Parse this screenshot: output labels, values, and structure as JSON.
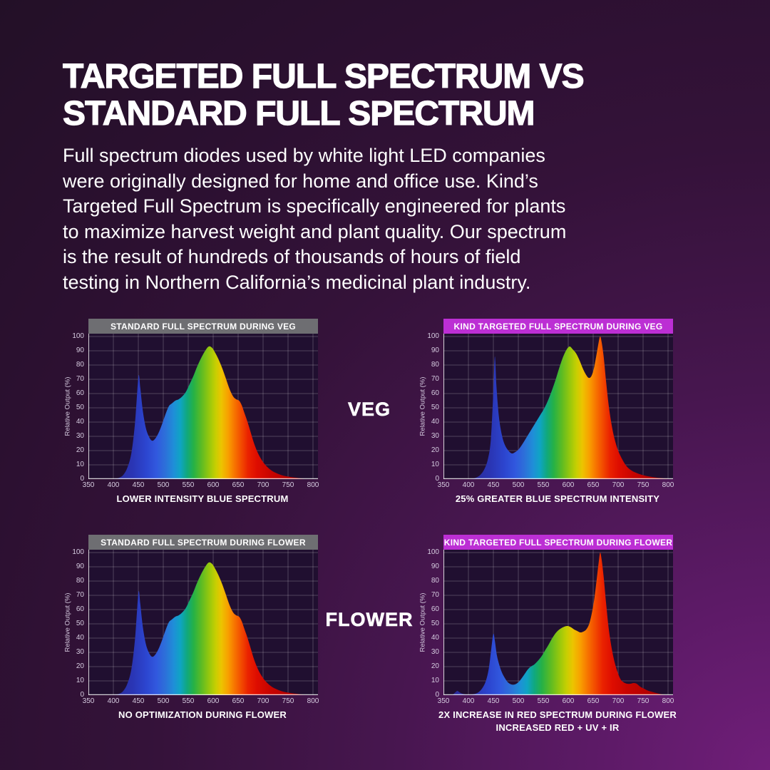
{
  "page": {
    "title_line1": "TARGETED FULL SPECTRUM VS",
    "title_line2": "STANDARD FULL SPECTRUM",
    "intro_lines": [
      "Full spectrum diodes used by white light LED companies",
      "were originally designed for home and office use. Kind’s",
      "Targeted Full Spectrum is specifically engineered for plants",
      "to maximize harvest weight and plant quality. Our spectrum",
      "is the result of hundreds of thousands of hours of field",
      "testing in Northern California’s medicinal plant industry."
    ]
  },
  "row_labels": {
    "veg": "VEG",
    "flower": "FLOWER"
  },
  "colors": {
    "background_dark": "#221026",
    "background_bright": "#701e79",
    "banner_standard": "#6e6e72",
    "banner_kind": "#bc2fd4",
    "plot_bg": "#200f30",
    "grid": "rgba(255,255,255,0.22)",
    "axis": "rgba(255,255,255,0.8)",
    "tick_text": "#d6cce0",
    "spectrum_stops": [
      [
        0.0,
        "#2b2b9a"
      ],
      [
        0.1,
        "#2a35b4"
      ],
      [
        0.17,
        "#2c45cf"
      ],
      [
        0.225,
        "#3158de"
      ],
      [
        0.27,
        "#2d6fd9"
      ],
      [
        0.315,
        "#1f8ed8"
      ],
      [
        0.35,
        "#0fa4c4"
      ],
      [
        0.385,
        "#10a87e"
      ],
      [
        0.42,
        "#26b146"
      ],
      [
        0.46,
        "#5bbb24"
      ],
      [
        0.5,
        "#94c70e"
      ],
      [
        0.535,
        "#c6cf02"
      ],
      [
        0.565,
        "#ecc400"
      ],
      [
        0.6,
        "#f8a000"
      ],
      [
        0.635,
        "#f77300"
      ],
      [
        0.67,
        "#f24a00"
      ],
      [
        0.705,
        "#ea2200"
      ],
      [
        0.75,
        "#de0d00"
      ],
      [
        0.82,
        "#c80400"
      ],
      [
        1.0,
        "#a50000"
      ]
    ]
  },
  "chart_data": [
    {
      "type": "area",
      "title": "STANDARD FULL SPECTRUM DURING VEG",
      "banner_style": "standard",
      "caption": [
        "LOWER INTENSITY BLUE SPECTRUM"
      ],
      "ylabel": "Relative Output (%)",
      "xlim": [
        350,
        810
      ],
      "ylim": [
        0,
        100
      ],
      "x_ticks": [
        350,
        400,
        450,
        500,
        550,
        600,
        650,
        700,
        750,
        800
      ],
      "y_ticks": [
        0,
        10,
        20,
        30,
        40,
        50,
        60,
        70,
        80,
        90,
        100
      ],
      "points": [
        [
          400,
          0
        ],
        [
          412,
          1
        ],
        [
          420,
          3
        ],
        [
          428,
          8
        ],
        [
          436,
          18
        ],
        [
          443,
          38
        ],
        [
          448,
          62
        ],
        [
          451,
          73
        ],
        [
          454,
          64
        ],
        [
          459,
          48
        ],
        [
          465,
          36
        ],
        [
          471,
          30
        ],
        [
          477,
          27
        ],
        [
          483,
          28
        ],
        [
          490,
          32
        ],
        [
          497,
          38
        ],
        [
          504,
          45
        ],
        [
          511,
          51
        ],
        [
          517,
          53
        ],
        [
          524,
          55
        ],
        [
          531,
          56
        ],
        [
          538,
          58
        ],
        [
          545,
          61
        ],
        [
          552,
          66
        ],
        [
          560,
          72
        ],
        [
          568,
          79
        ],
        [
          576,
          85
        ],
        [
          584,
          90
        ],
        [
          591,
          93
        ],
        [
          598,
          92
        ],
        [
          605,
          88
        ],
        [
          612,
          83
        ],
        [
          619,
          77
        ],
        [
          626,
          70
        ],
        [
          633,
          63
        ],
        [
          640,
          58
        ],
        [
          646,
          56
        ],
        [
          652,
          55
        ],
        [
          657,
          52
        ],
        [
          662,
          47
        ],
        [
          668,
          41
        ],
        [
          675,
          33
        ],
        [
          682,
          25
        ],
        [
          690,
          18
        ],
        [
          698,
          13
        ],
        [
          707,
          9
        ],
        [
          717,
          6
        ],
        [
          728,
          4
        ],
        [
          740,
          2.5
        ],
        [
          755,
          1.5
        ],
        [
          770,
          0.8
        ],
        [
          783,
          0
        ]
      ]
    },
    {
      "type": "area",
      "title": "KIND TARGETED FULL SPECTRUM DURING VEG",
      "banner_style": "kind",
      "caption": [
        "25% GREATER BLUE SPECTRUM INTENSITY"
      ],
      "ylabel": "Relative Output (%)",
      "xlim": [
        350,
        810
      ],
      "ylim": [
        0,
        100
      ],
      "x_ticks": [
        350,
        400,
        450,
        500,
        550,
        600,
        650,
        700,
        750,
        800
      ],
      "y_ticks": [
        0,
        10,
        20,
        30,
        40,
        50,
        60,
        70,
        80,
        90,
        100
      ],
      "points": [
        [
          405,
          0
        ],
        [
          415,
          1
        ],
        [
          424,
          3
        ],
        [
          432,
          7
        ],
        [
          439,
          14
        ],
        [
          445,
          28
        ],
        [
          450,
          62
        ],
        [
          453,
          86
        ],
        [
          456,
          66
        ],
        [
          461,
          44
        ],
        [
          467,
          31
        ],
        [
          473,
          24
        ],
        [
          480,
          20
        ],
        [
          487,
          18
        ],
        [
          494,
          19
        ],
        [
          501,
          21
        ],
        [
          509,
          25
        ],
        [
          516,
          29
        ],
        [
          523,
          33
        ],
        [
          530,
          37
        ],
        [
          537,
          41
        ],
        [
          544,
          45
        ],
        [
          551,
          49
        ],
        [
          558,
          54
        ],
        [
          566,
          61
        ],
        [
          574,
          69
        ],
        [
          582,
          78
        ],
        [
          590,
          86
        ],
        [
          597,
          91
        ],
        [
          603,
          93
        ],
        [
          609,
          91
        ],
        [
          616,
          88
        ],
        [
          623,
          83
        ],
        [
          630,
          77
        ],
        [
          636,
          73
        ],
        [
          641,
          71
        ],
        [
          646,
          72
        ],
        [
          651,
          77
        ],
        [
          656,
          86
        ],
        [
          661,
          96
        ],
        [
          664,
          100
        ],
        [
          667,
          96
        ],
        [
          671,
          86
        ],
        [
          676,
          68
        ],
        [
          681,
          52
        ],
        [
          687,
          38
        ],
        [
          693,
          28
        ],
        [
          700,
          20
        ],
        [
          708,
          14
        ],
        [
          717,
          9
        ],
        [
          727,
          6
        ],
        [
          739,
          4
        ],
        [
          753,
          2.5
        ],
        [
          768,
          1.5
        ],
        [
          783,
          0.8
        ],
        [
          800,
          0.3
        ]
      ]
    },
    {
      "type": "area",
      "title": "STANDARD FULL SPECTRUM DURING FLOWER",
      "banner_style": "standard",
      "caption": [
        "NO OPTIMIZATION DURING FLOWER"
      ],
      "ylabel": "Relative Output (%)",
      "xlim": [
        350,
        810
      ],
      "ylim": [
        0,
        100
      ],
      "x_ticks": [
        350,
        400,
        450,
        500,
        550,
        600,
        650,
        700,
        750,
        800
      ],
      "y_ticks": [
        0,
        10,
        20,
        30,
        40,
        50,
        60,
        70,
        80,
        90,
        100
      ],
      "points": [
        [
          400,
          0
        ],
        [
          412,
          1
        ],
        [
          420,
          3
        ],
        [
          428,
          8
        ],
        [
          436,
          18
        ],
        [
          443,
          38
        ],
        [
          448,
          62
        ],
        [
          451,
          73
        ],
        [
          454,
          64
        ],
        [
          459,
          48
        ],
        [
          465,
          36
        ],
        [
          471,
          30
        ],
        [
          477,
          27
        ],
        [
          483,
          28
        ],
        [
          490,
          32
        ],
        [
          497,
          38
        ],
        [
          504,
          45
        ],
        [
          511,
          51
        ],
        [
          517,
          53
        ],
        [
          524,
          55
        ],
        [
          531,
          56
        ],
        [
          538,
          58
        ],
        [
          545,
          61
        ],
        [
          552,
          66
        ],
        [
          560,
          72
        ],
        [
          568,
          79
        ],
        [
          576,
          85
        ],
        [
          584,
          90
        ],
        [
          591,
          93
        ],
        [
          598,
          92
        ],
        [
          605,
          88
        ],
        [
          612,
          83
        ],
        [
          619,
          77
        ],
        [
          626,
          70
        ],
        [
          633,
          63
        ],
        [
          640,
          58
        ],
        [
          646,
          56
        ],
        [
          652,
          55
        ],
        [
          657,
          52
        ],
        [
          662,
          47
        ],
        [
          668,
          41
        ],
        [
          675,
          33
        ],
        [
          682,
          25
        ],
        [
          690,
          18
        ],
        [
          698,
          13
        ],
        [
          707,
          9
        ],
        [
          717,
          6
        ],
        [
          728,
          4
        ],
        [
          740,
          2.5
        ],
        [
          755,
          1.5
        ],
        [
          770,
          0.8
        ],
        [
          783,
          0
        ]
      ]
    },
    {
      "type": "area",
      "title": "KIND TARGETED FULL SPECTRUM DURING FLOWER",
      "banner_style": "kind",
      "caption": [
        "2X INCREASE IN RED SPECTRUM DURING FLOWER",
        "INCREASED RED + UV + IR"
      ],
      "ylabel": "Relative Output (%)",
      "xlim": [
        350,
        810
      ],
      "ylim": [
        0,
        100
      ],
      "x_ticks": [
        350,
        400,
        450,
        500,
        550,
        600,
        650,
        700,
        750,
        800
      ],
      "y_ticks": [
        0,
        10,
        20,
        30,
        40,
        50,
        60,
        70,
        80,
        90,
        100
      ],
      "points": [
        [
          368,
          0
        ],
        [
          374,
          2
        ],
        [
          378,
          3
        ],
        [
          382,
          2
        ],
        [
          388,
          1
        ],
        [
          395,
          0.4
        ],
        [
          403,
          0.2
        ],
        [
          412,
          0.8
        ],
        [
          420,
          2
        ],
        [
          428,
          5
        ],
        [
          435,
          10
        ],
        [
          441,
          19
        ],
        [
          446,
          33
        ],
        [
          450,
          43
        ],
        [
          453,
          38
        ],
        [
          457,
          28
        ],
        [
          462,
          21
        ],
        [
          467,
          16
        ],
        [
          473,
          12
        ],
        [
          479,
          9
        ],
        [
          486,
          7.5
        ],
        [
          493,
          7.5
        ],
        [
          500,
          9
        ],
        [
          507,
          12
        ],
        [
          513,
          15
        ],
        [
          519,
          18
        ],
        [
          525,
          20
        ],
        [
          532,
          21.5
        ],
        [
          539,
          24
        ],
        [
          546,
          27
        ],
        [
          553,
          31
        ],
        [
          560,
          35
        ],
        [
          568,
          40
        ],
        [
          576,
          44
        ],
        [
          584,
          46.5
        ],
        [
          592,
          48
        ],
        [
          599,
          48.5
        ],
        [
          606,
          47.5
        ],
        [
          612,
          46
        ],
        [
          618,
          45
        ],
        [
          624,
          44
        ],
        [
          630,
          44.5
        ],
        [
          636,
          46
        ],
        [
          642,
          50
        ],
        [
          647,
          57
        ],
        [
          652,
          67
        ],
        [
          657,
          81
        ],
        [
          661,
          93
        ],
        [
          664,
          100
        ],
        [
          667,
          95
        ],
        [
          671,
          83
        ],
        [
          676,
          64
        ],
        [
          681,
          47
        ],
        [
          687,
          33
        ],
        [
          693,
          23
        ],
        [
          699,
          16
        ],
        [
          705,
          11
        ],
        [
          711,
          9
        ],
        [
          718,
          8
        ],
        [
          725,
          8
        ],
        [
          731,
          8.5
        ],
        [
          737,
          8
        ],
        [
          744,
          6
        ],
        [
          752,
          4.5
        ],
        [
          761,
          3
        ],
        [
          771,
          2
        ],
        [
          782,
          1
        ],
        [
          795,
          0
        ]
      ]
    }
  ]
}
